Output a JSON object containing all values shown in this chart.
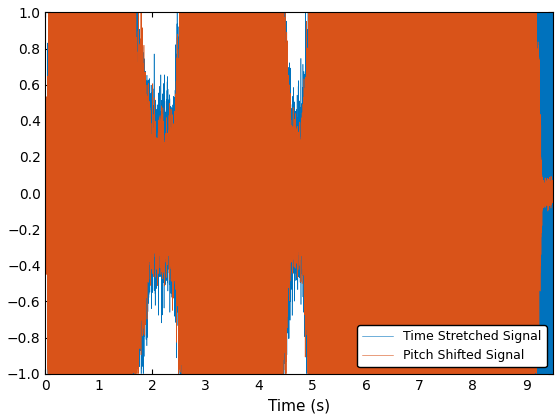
{
  "title": "",
  "xlabel": "Time (s)",
  "ylabel": "",
  "xlim": [
    0,
    9.5
  ],
  "ylim": [
    -1,
    1
  ],
  "xticks": [
    0,
    1,
    2,
    3,
    4,
    5,
    6,
    7,
    8,
    9
  ],
  "yticks": [
    -1,
    -0.8,
    -0.6,
    -0.4,
    -0.2,
    0,
    0.2,
    0.4,
    0.6,
    0.8,
    1
  ],
  "line1_color": "#0072BD",
  "line2_color": "#D95319",
  "line1_label": "Time Stretched Signal",
  "line2_label": "Pitch Shifted Signal",
  "line_width": 0.4,
  "legend_loc": "lower right",
  "fs": 8000,
  "duration": 9.5,
  "seed": 7,
  "figsize": [
    5.6,
    4.2
  ],
  "dpi": 100
}
